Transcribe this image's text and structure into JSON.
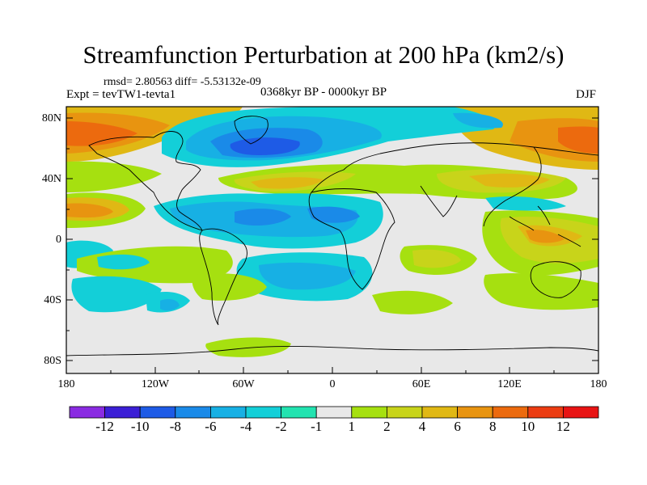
{
  "title": "Streamfunction Perturbation at 200 hPa (km2/s)",
  "stats": "rmsd= 2.80563 diff= -5.53132e-09",
  "experiment": "Expt = tevTW1-tevta1",
  "period": "0368kyr BP - 0000kyr BP",
  "season": "DJF",
  "map": {
    "y_ticks": [
      "80N",
      "40N",
      "0",
      "40S",
      "80S"
    ],
    "x_ticks": [
      "180",
      "120W",
      "60W",
      "0",
      "60E",
      "120E",
      "180"
    ]
  },
  "colorbar": {
    "labels": [
      "-12",
      "-10",
      "-8",
      "-6",
      "-4",
      "-2",
      "-1",
      "1",
      "2",
      "4",
      "6",
      "8",
      "10",
      "12"
    ],
    "colors": [
      "#8a2be2",
      "#3b1fd6",
      "#1e5be6",
      "#1a8ae8",
      "#17b0e4",
      "#13cfd8",
      "#22e3b0",
      "#e8e8e8",
      "#a6e010",
      "#c8d41a",
      "#e0b814",
      "#e89410",
      "#ec6a0e",
      "#ec3c12",
      "#e81414"
    ]
  },
  "colors": {
    "land_outline": "#000000",
    "neutral": "#e8e8e8"
  }
}
